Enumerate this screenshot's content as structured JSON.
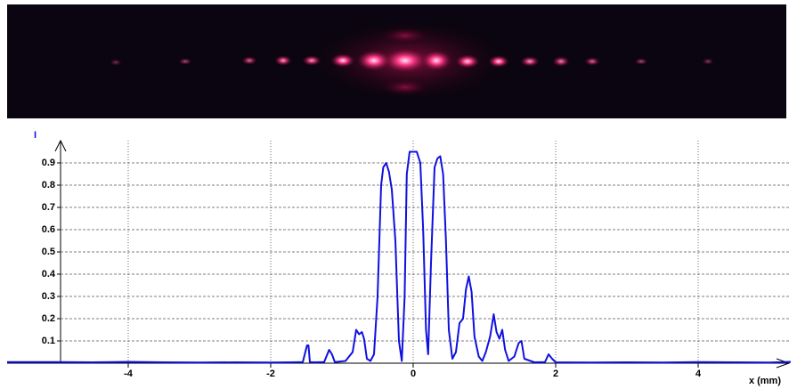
{
  "chart_data": {
    "type": "line",
    "xlabel": "x (mm)",
    "ylabel": "I",
    "x": [
      -5.7,
      -5.0,
      -4.5,
      -4.0,
      -3.5,
      -3.0,
      -2.5,
      -2.0,
      -1.7,
      -1.55,
      -1.49,
      -1.47,
      -1.45,
      -1.4,
      -1.25,
      -1.18,
      -1.14,
      -1.1,
      -0.95,
      -0.85,
      -0.8,
      -0.76,
      -0.72,
      -0.69,
      -0.65,
      -0.6,
      -0.55,
      -0.5,
      -0.45,
      -0.42,
      -0.38,
      -0.34,
      -0.3,
      -0.25,
      -0.2,
      -0.16,
      -0.12,
      -0.09,
      -0.05,
      0,
      0.05,
      0.1,
      0.14,
      0.18,
      0.21,
      0.25,
      0.3,
      0.34,
      0.38,
      0.42,
      0.46,
      0.5,
      0.55,
      0.6,
      0.65,
      0.7,
      0.74,
      0.78,
      0.82,
      0.86,
      0.92,
      0.97,
      1.02,
      1.08,
      1.13,
      1.17,
      1.21,
      1.25,
      1.29,
      1.34,
      1.42,
      1.48,
      1.52,
      1.56,
      1.7,
      1.85,
      1.9,
      1.95,
      2.0,
      2.5,
      3.0,
      3.5,
      4.0,
      4.5,
      5.0,
      5.3
    ],
    "series": [
      {
        "color": "#1010e0",
        "values": [
          0.005,
          0.005,
          0.004,
          0.006,
          0.004,
          0.003,
          0.004,
          0.003,
          0.004,
          0.005,
          0.08,
          0.08,
          0.005,
          0.004,
          0.005,
          0.06,
          0.04,
          0.005,
          0.01,
          0.05,
          0.15,
          0.13,
          0.14,
          0.11,
          0.02,
          0.01,
          0.04,
          0.3,
          0.8,
          0.88,
          0.9,
          0.86,
          0.78,
          0.55,
          0.1,
          0.01,
          0.3,
          0.85,
          0.95,
          0.95,
          0.95,
          0.9,
          0.6,
          0.15,
          0.04,
          0.45,
          0.88,
          0.92,
          0.93,
          0.85,
          0.55,
          0.15,
          0.02,
          0.05,
          0.18,
          0.2,
          0.33,
          0.39,
          0.32,
          0.12,
          0.03,
          0.01,
          0.05,
          0.12,
          0.22,
          0.14,
          0.11,
          0.15,
          0.06,
          0.01,
          0.03,
          0.09,
          0.1,
          0.02,
          0.004,
          0.005,
          0.04,
          0.02,
          0.004,
          0.003,
          0.004,
          0.003,
          0.005,
          0.004,
          0.003,
          0.006
        ]
      }
    ],
    "xlim": [
      -5.7,
      5.3
    ],
    "xticks": [
      -4,
      -2,
      0,
      2,
      4
    ],
    "ylim": [
      -0.01,
      1.0
    ],
    "yticks": [
      0.1,
      0.2,
      0.3,
      0.4,
      0.5,
      0.6,
      0.7,
      0.8,
      0.9
    ],
    "grid": true
  }
}
